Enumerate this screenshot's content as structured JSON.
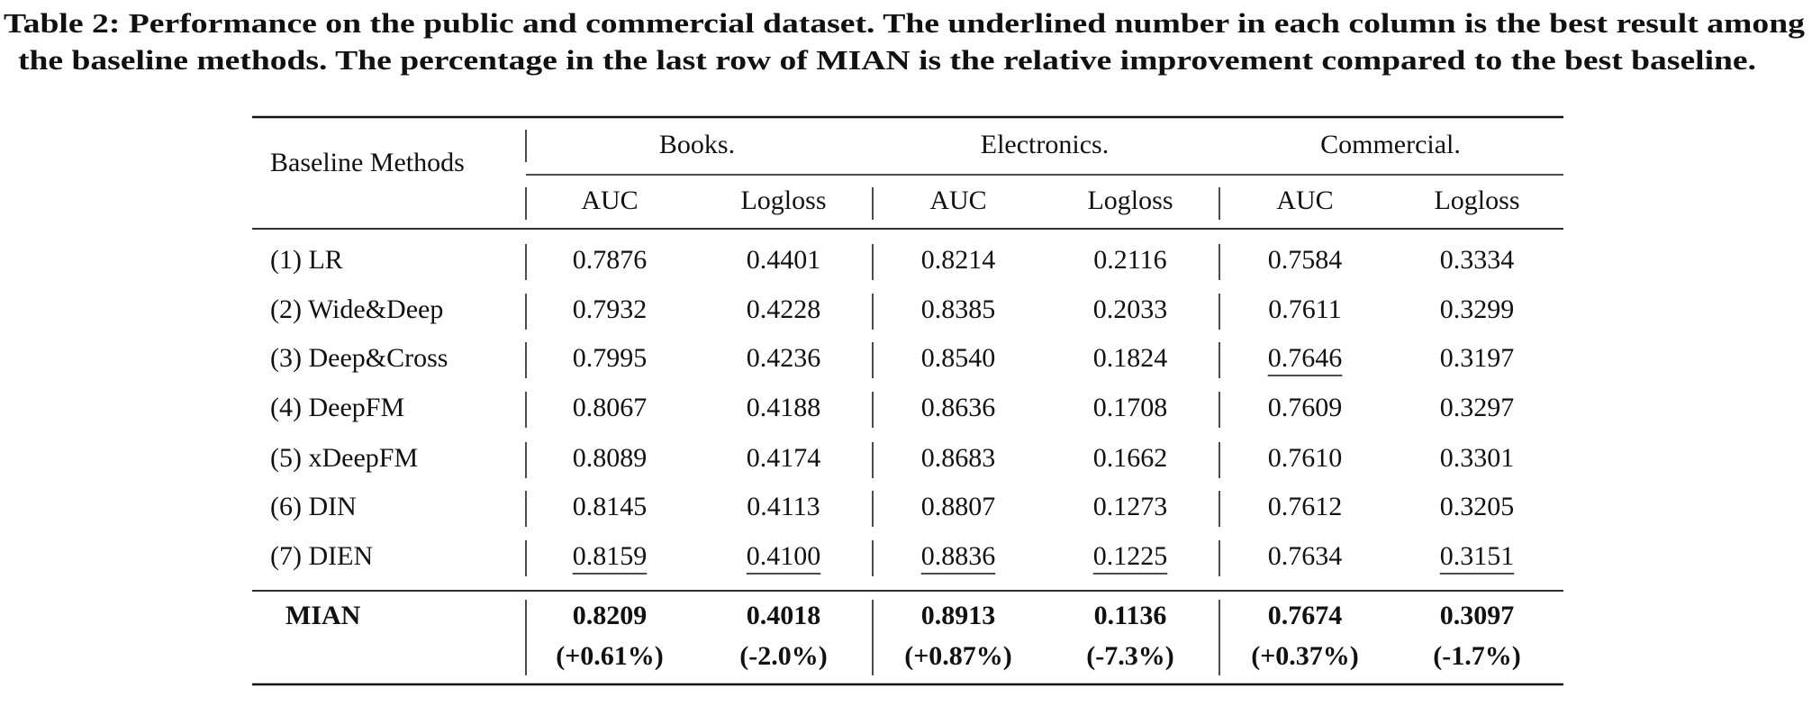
{
  "caption": [
    "Table 2: Performance on the public and commercial dataset. The underlined number in each column is the best result among",
    "the baseline methods. The percentage in the last row of MIAN is the relative improvement compared to the best baseline."
  ],
  "table": {
    "corner": "Baseline Methods",
    "groups": [
      "Books.",
      "Electronics.",
      "Commercial."
    ],
    "subheaders": [
      "AUC",
      "Logloss",
      "AUC",
      "Logloss",
      "AUC",
      "Logloss"
    ],
    "rows": [
      [
        "(1) LR",
        "0.7876",
        "0.4401",
        "0.8214",
        "0.2116",
        "0.7584",
        "0.3334"
      ],
      [
        "(2) Wide&Deep",
        "0.7932",
        "0.4228",
        "0.8385",
        "0.2033",
        "0.7611",
        "0.3299"
      ],
      [
        "(3) Deep&Cross",
        "0.7995",
        "0.4236",
        "0.8540",
        "0.1824",
        {
          "text": "0.7646",
          "underline": true
        },
        "0.3197"
      ],
      [
        "(4) DeepFM",
        "0.8067",
        "0.4188",
        "0.8636",
        "0.1708",
        "0.7609",
        "0.3297"
      ],
      [
        "(5) xDeepFM",
        "0.8089",
        "0.4174",
        "0.8683",
        "0.1662",
        "0.7610",
        "0.3301"
      ],
      [
        "(6) DIN",
        "0.8145",
        "0.4113",
        "0.8807",
        "0.1273",
        "0.7612",
        "0.3205"
      ],
      [
        "(7) DIEN",
        {
          "text": "0.8159",
          "underline": true
        },
        {
          "text": "0.4100",
          "underline": true
        },
        {
          "text": "0.8836",
          "underline": true
        },
        {
          "text": "0.1225",
          "underline": true
        },
        "0.7634",
        {
          "text": "0.3151",
          "underline": true
        }
      ]
    ],
    "final": {
      "label": "MIAN",
      "values": [
        "0.8209",
        "0.4018",
        "0.8913",
        "0.1136",
        "0.7674",
        "0.3097"
      ],
      "improvements": [
        "(+0.61%)",
        "(-2.0%)",
        "(+0.87%)",
        "(-7.3%)",
        "(+0.37%)",
        "(-1.7%)"
      ]
    }
  }
}
